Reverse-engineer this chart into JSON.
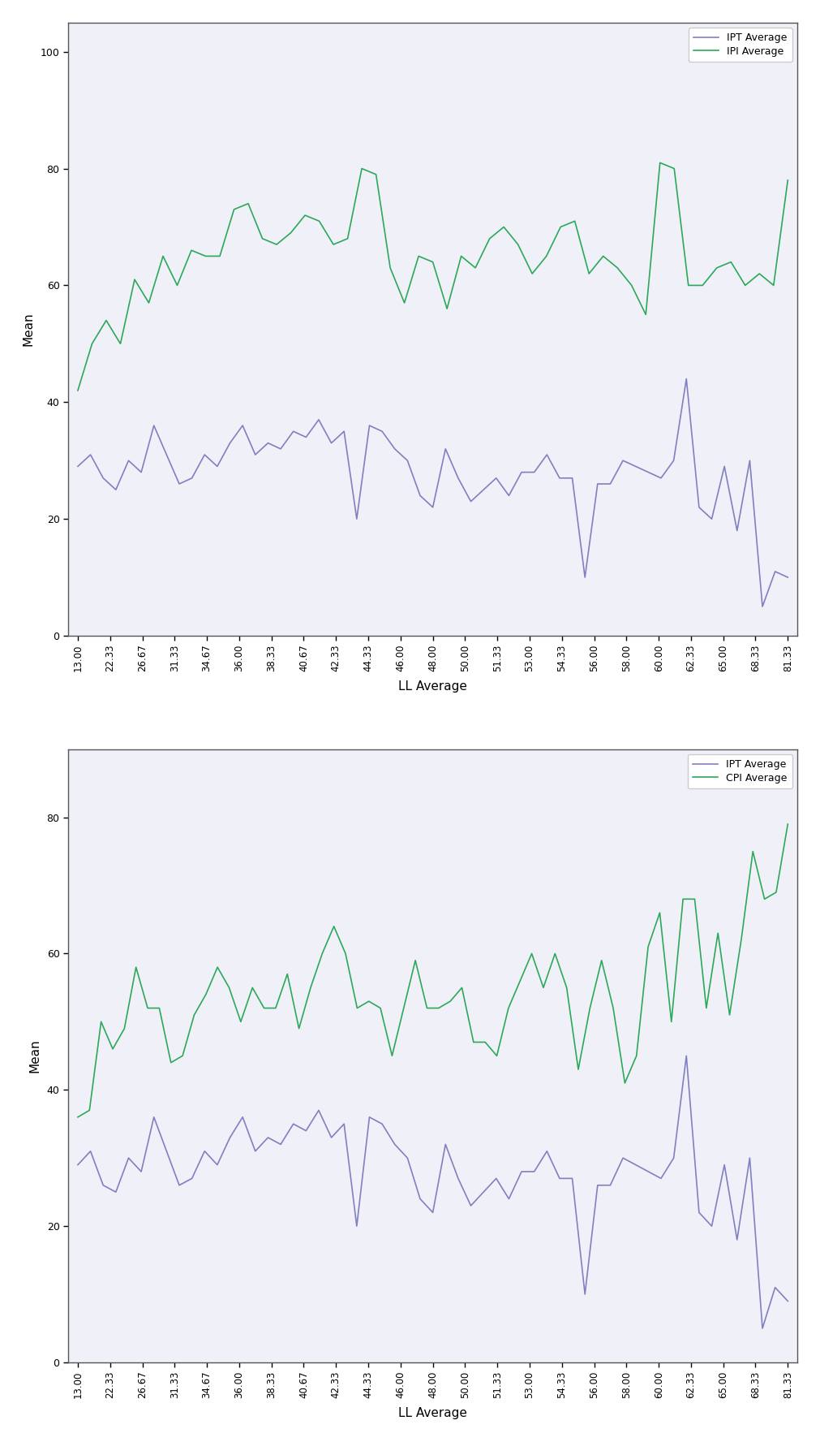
{
  "x_labels": [
    "13.00",
    "22.33",
    "26.67",
    "31.33",
    "34.67",
    "36.00",
    "38.33",
    "40.67",
    "42.33",
    "44.33",
    "46.00",
    "48.00",
    "50.00",
    "51.33",
    "53.00",
    "54.33",
    "56.00",
    "58.00",
    "60.00",
    "62.33",
    "65.00",
    "68.33",
    "81.33"
  ],
  "background_color": "#f0f0f8",
  "line_color_ipt": "#8080c0",
  "line_color_ipi": "#2ca85a",
  "line_color_cpi": "#2ca85a",
  "ylabel": "Mean",
  "xlabel": "LL Average",
  "legend1_order": [
    "IPT Average",
    "IPI Average"
  ],
  "legend2_order": [
    "IPT Average",
    "CPI Average"
  ],
  "ipt1": [
    29,
    31,
    27,
    25,
    30,
    28,
    36,
    31,
    26,
    27,
    31,
    29,
    33,
    36,
    31,
    33,
    32,
    35,
    34,
    37,
    33,
    35,
    20,
    36,
    35,
    32,
    30,
    24,
    22,
    32,
    27,
    23,
    25,
    27,
    24,
    28,
    28,
    31,
    27,
    27,
    10,
    26,
    26,
    30,
    29,
    28,
    27,
    30,
    44,
    22,
    20,
    29,
    18,
    30,
    5,
    11,
    10
  ],
  "ipi1": [
    42,
    50,
    54,
    50,
    61,
    57,
    65,
    60,
    66,
    65,
    65,
    73,
    74,
    68,
    67,
    69,
    72,
    71,
    67,
    68,
    80,
    79,
    63,
    57,
    65,
    64,
    56,
    65,
    63,
    68,
    70,
    67,
    62,
    65,
    70,
    71,
    62,
    65,
    63,
    60,
    55,
    81,
    80,
    60,
    60,
    63,
    64,
    60,
    62,
    60,
    78
  ],
  "ipt2": [
    29,
    31,
    26,
    25,
    30,
    28,
    36,
    31,
    26,
    27,
    31,
    29,
    33,
    36,
    31,
    33,
    32,
    35,
    34,
    37,
    33,
    35,
    20,
    36,
    35,
    32,
    30,
    24,
    22,
    32,
    27,
    23,
    25,
    27,
    24,
    28,
    28,
    31,
    27,
    27,
    10,
    26,
    26,
    30,
    29,
    28,
    27,
    30,
    45,
    22,
    20,
    29,
    18,
    30,
    5,
    11,
    9
  ],
  "cpi2": [
    36,
    37,
    50,
    46,
    49,
    58,
    52,
    52,
    44,
    45,
    51,
    54,
    58,
    55,
    50,
    55,
    52,
    52,
    57,
    49,
    55,
    60,
    64,
    60,
    52,
    53,
    52,
    45,
    52,
    59,
    52,
    52,
    53,
    55,
    47,
    47,
    45,
    52,
    56,
    60,
    55,
    60,
    55,
    43,
    52,
    59,
    52,
    41,
    45,
    61,
    66,
    50,
    68,
    68,
    52,
    63,
    51,
    62,
    75,
    68,
    69,
    79
  ]
}
